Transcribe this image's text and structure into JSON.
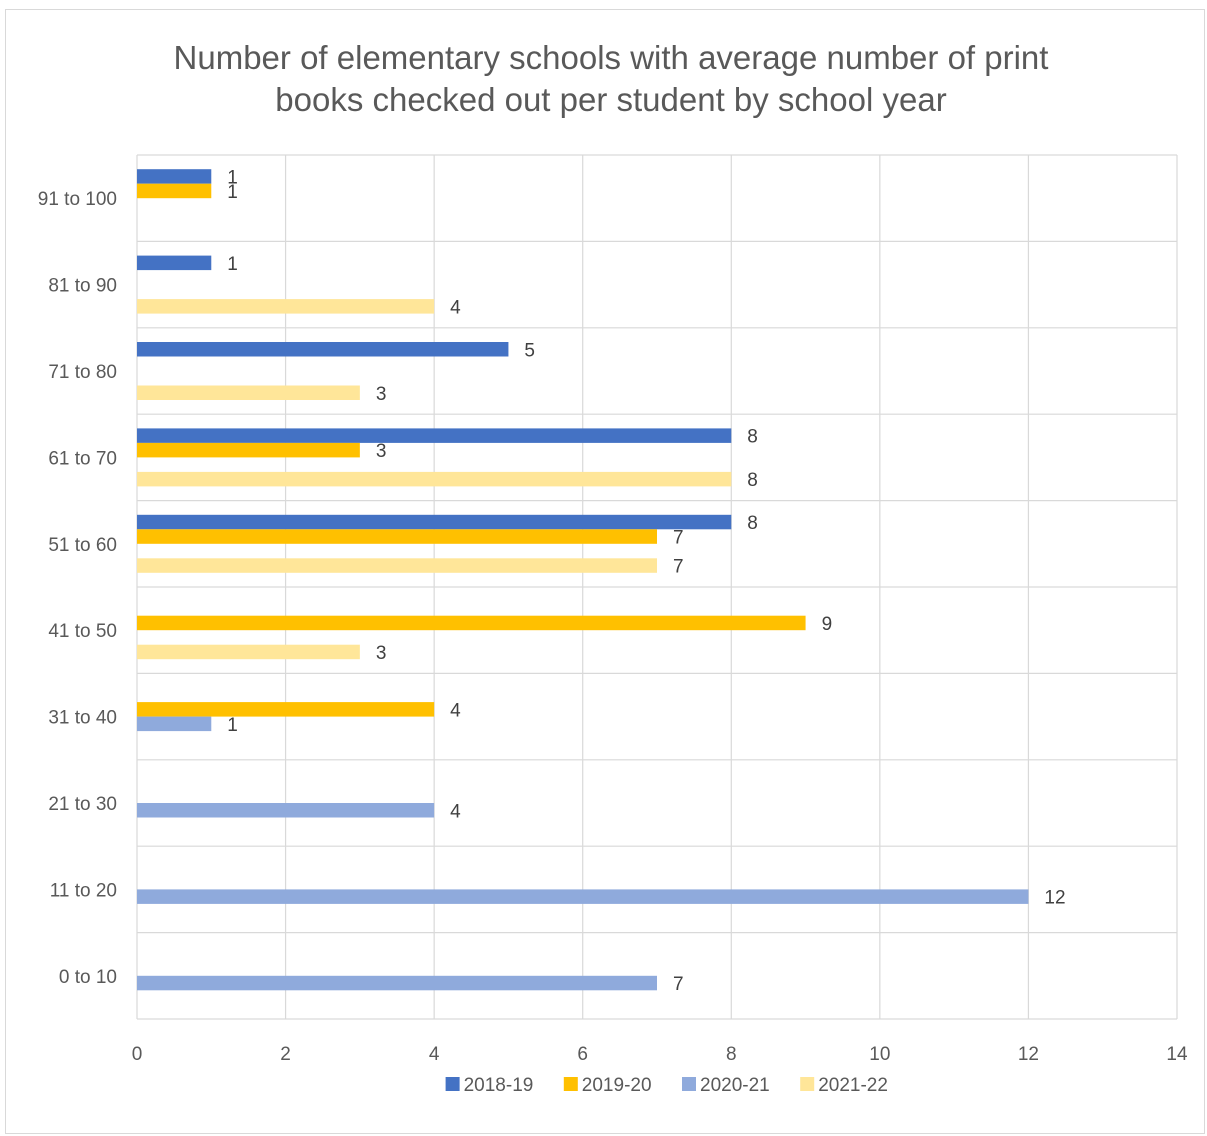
{
  "chart_data": {
    "type": "bar",
    "orientation": "horizontal",
    "title": "Number of elementary schools with average number of print books checked out per student by school year",
    "title_lines": [
      "Number of elementary schools with average number of print",
      "books checked out per student by school year"
    ],
    "xlabel": "",
    "ylabel": "",
    "xlim": [
      0,
      14
    ],
    "x_ticks": [
      "0",
      "2",
      "4",
      "6",
      "8",
      "10",
      "12",
      "14"
    ],
    "grid": true,
    "legend_position": "bottom",
    "categories": [
      "91 to 100",
      "81 to 90",
      "71 to 80",
      "61 to 70",
      "51 to 60",
      "41 to 50",
      "31 to 40",
      "21 to 30",
      "11 to 20",
      "0 to 10"
    ],
    "series": [
      {
        "name": "2018-19",
        "color": "#4472c4",
        "values": [
          1,
          1,
          5,
          8,
          8,
          null,
          null,
          null,
          null,
          null
        ]
      },
      {
        "name": "2019-20",
        "color": "#ffc000",
        "values": [
          1,
          null,
          null,
          3,
          7,
          9,
          4,
          null,
          null,
          null
        ]
      },
      {
        "name": "2020-21",
        "color": "#8faadc",
        "values": [
          null,
          null,
          null,
          null,
          null,
          null,
          1,
          4,
          12,
          7
        ]
      },
      {
        "name": "2021-22",
        "color": "#ffe699",
        "values": [
          null,
          4,
          3,
          8,
          7,
          3,
          null,
          null,
          null,
          null
        ]
      }
    ],
    "data_labels": true
  }
}
